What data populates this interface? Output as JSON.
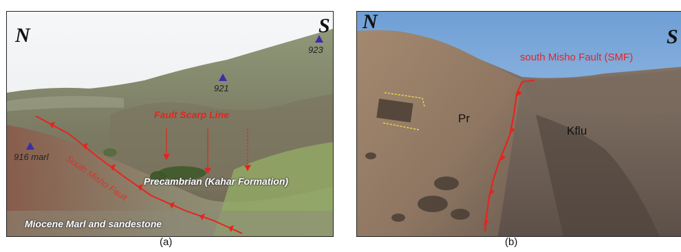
{
  "panel_a": {
    "north": "N",
    "south": "S",
    "peaks": [
      "923",
      "921",
      "916 marl"
    ],
    "fault_scarp": "Fault Scarp Line",
    "fault_trace_text": "South Misho Fault",
    "precambrian": "Precambrian (Kahar Formation)",
    "miocene": "Miocene Marl and sandestone",
    "caption": "(a)"
  },
  "panel_b": {
    "north": "N",
    "south": "S",
    "fault_label": "south Misho Fault (SMF)",
    "unit_pr": "Pr",
    "unit_kflu": "Kflu",
    "caption": "(b)"
  },
  "colors": {
    "fault": "#e8231f",
    "peak_marker": "#3a2ea8"
  }
}
